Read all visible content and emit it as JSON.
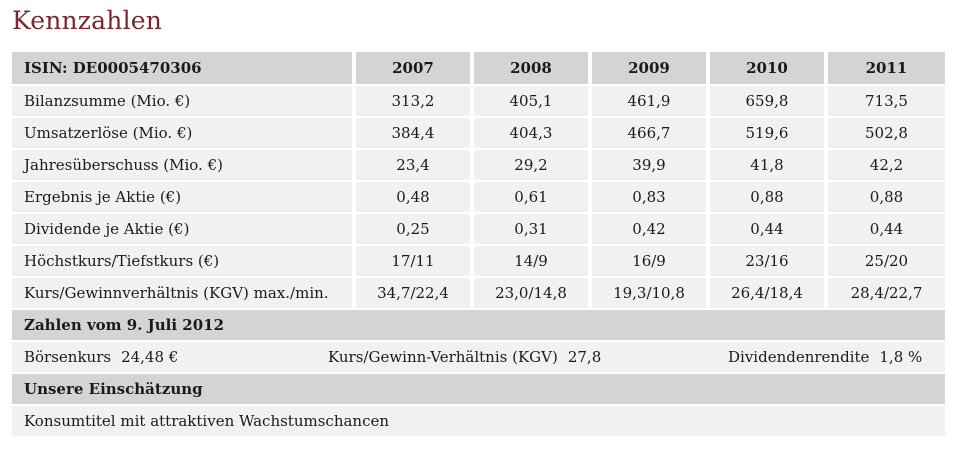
{
  "title": "Kennzahlen",
  "table": {
    "header": [
      "ISIN: DE0005470306",
      "2007",
      "2008",
      "2009",
      "2010",
      "2011"
    ],
    "rows": [
      {
        "label": "Bilanzsumme (Mio. €)",
        "values": [
          "313,2",
          "405,1",
          "461,9",
          "659,8",
          "713,5"
        ]
      },
      {
        "label": "Umsatzerlöse (Mio. €)",
        "values": [
          "384,4",
          "404,3",
          "466,7",
          "519,6",
          "502,8"
        ]
      },
      {
        "label": "Jahresüberschuss (Mio. €)",
        "values": [
          "23,4",
          "29,2",
          "39,9",
          "41,8",
          "42,2"
        ]
      },
      {
        "label": "Ergebnis je Aktie (€)",
        "values": [
          "0,48",
          "0,61",
          "0,83",
          "0,88",
          "0,88"
        ]
      },
      {
        "label": "Dividende je Aktie (€)",
        "values": [
          "0,25",
          "0,31",
          "0,42",
          "0,44",
          "0,44"
        ]
      },
      {
        "label": "Höchstkurs/Tiefstkurs (€)",
        "values": [
          "17/11",
          "14/9",
          "16/9",
          "23/16",
          "25/20"
        ]
      },
      {
        "label": "Kurs/Gewinnverhältnis (KGV) max./min.",
        "values": [
          "34,7/22,4",
          "23,0/14,8",
          "19,3/10,8",
          "26,4/18,4",
          "28,4/22,7"
        ]
      }
    ]
  },
  "snapshot": {
    "heading": "Zahlen vom 9. Juli 2012",
    "boersenkurs_label": "Börsenkurs",
    "boersenkurs_value": "24,48 €",
    "kgv_label": "Kurs/Gewinn-Verhältnis (KGV)",
    "kgv_value": "27,8",
    "rendite_label": "Dividendenrendite",
    "rendite_value": "1,8 %"
  },
  "assessment": {
    "heading": "Unsere Einschätzung",
    "text": "Konsumtitel mit attraktiven Wachstumschancen"
  }
}
